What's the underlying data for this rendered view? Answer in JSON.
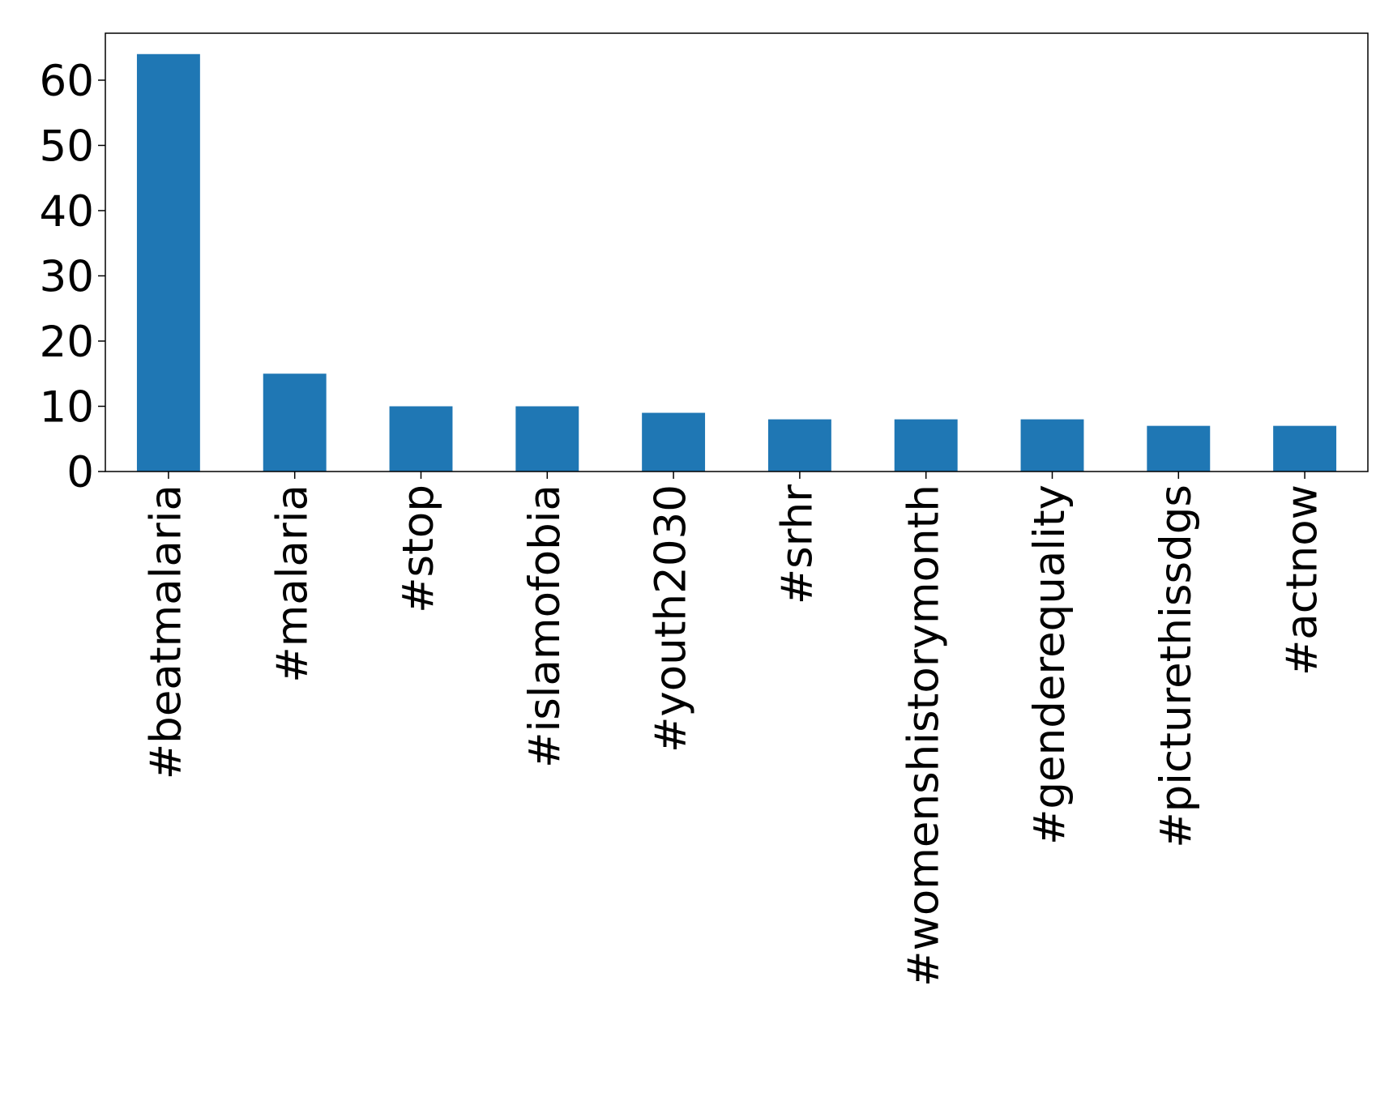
{
  "chart_data": {
    "type": "bar",
    "categories": [
      "#beatmalaria",
      "#malaria",
      "#stop",
      "#islamofobia",
      "#youth2030",
      "#srhr",
      "#womenshistorymonth",
      "#genderequality",
      "#picturethissdgs",
      "#actnow"
    ],
    "values": [
      64,
      15,
      10,
      10,
      9,
      8,
      8,
      8,
      7,
      7
    ],
    "color": "#1f77b4",
    "ylim": [
      0,
      67.2
    ],
    "yticks": [
      0,
      10,
      20,
      30,
      40,
      50,
      60
    ],
    "grid": false
  }
}
